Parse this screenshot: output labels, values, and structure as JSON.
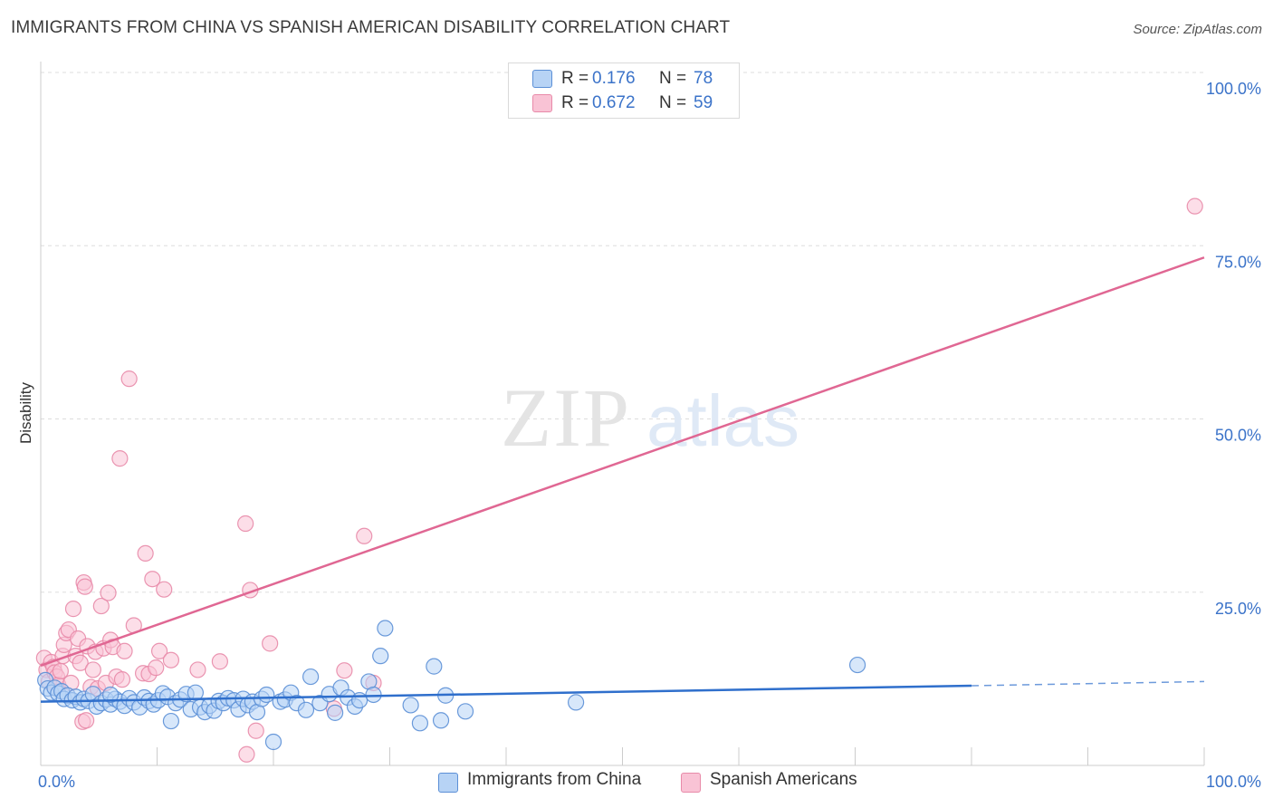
{
  "title": "IMMIGRANTS FROM CHINA VS SPANISH AMERICAN DISABILITY CORRELATION CHART",
  "source": "Source: ZipAtlas.com",
  "watermark": {
    "zip": "ZIP",
    "atlas": "atlas"
  },
  "colors": {
    "blue_fill": "#b7d3f5",
    "blue_stroke": "#5b8fd6",
    "blue_line": "#2f6fcc",
    "pink_fill": "#f9c3d5",
    "pink_stroke": "#e88aa9",
    "pink_line": "#e06793",
    "tick_label": "#3b73c9",
    "grid": "#dddddd"
  },
  "legend": {
    "rows": [
      {
        "r_label": "R =",
        "r_value": "0.176",
        "n_label": "N =",
        "n_value": "78"
      },
      {
        "r_label": "R =",
        "r_value": "0.672",
        "n_label": "N =",
        "n_value": "59"
      }
    ]
  },
  "chart_data": {
    "type": "scatter",
    "title": "IMMIGRANTS FROM CHINA VS SPANISH AMERICAN DISABILITY CORRELATION CHART",
    "xlabel": "",
    "ylabel": "Disability",
    "xlim": [
      0,
      100
    ],
    "ylim": [
      0,
      100
    ],
    "x_tick_labels": [
      "0.0%",
      "100.0%"
    ],
    "y_ticks": [
      25,
      50,
      75,
      100
    ],
    "y_tick_labels": [
      "25.0%",
      "50.0%",
      "75.0%",
      "100.0%"
    ],
    "grid": true,
    "legend_position": "top-center",
    "series": [
      {
        "name": "Immigrants from China",
        "R": 0.176,
        "N": 78,
        "trend": {
          "x0": 0,
          "y0": 9.2,
          "x1": 80,
          "y1": 11.5,
          "dashed_to_x": 100,
          "dashed_to_y": 12.1
        },
        "points": [
          [
            0.4,
            12.3
          ],
          [
            0.6,
            11.1
          ],
          [
            0.9,
            10.5
          ],
          [
            1.2,
            11.2
          ],
          [
            1.5,
            10.4
          ],
          [
            1.8,
            10.7
          ],
          [
            2.0,
            9.6
          ],
          [
            2.3,
            10.1
          ],
          [
            2.7,
            9.4
          ],
          [
            3.0,
            9.9
          ],
          [
            3.4,
            9.1
          ],
          [
            3.7,
            9.6
          ],
          [
            4.1,
            9.3
          ],
          [
            4.5,
            10.3
          ],
          [
            4.8,
            8.5
          ],
          [
            5.2,
            9.0
          ],
          [
            5.6,
            9.5
          ],
          [
            6.0,
            8.8
          ],
          [
            6.4,
            9.6
          ],
          [
            6.8,
            9.2
          ],
          [
            7.2,
            8.6
          ],
          [
            7.6,
            9.7
          ],
          [
            8.0,
            9.1
          ],
          [
            8.5,
            8.4
          ],
          [
            8.9,
            9.8
          ],
          [
            9.3,
            9.3
          ],
          [
            9.7,
            8.8
          ],
          [
            10.1,
            9.4
          ],
          [
            10.5,
            10.4
          ],
          [
            10.9,
            9.9
          ],
          [
            11.2,
            6.4
          ],
          [
            11.6,
            9.0
          ],
          [
            12.0,
            9.5
          ],
          [
            12.5,
            10.3
          ],
          [
            12.9,
            8.1
          ],
          [
            13.3,
            10.5
          ],
          [
            13.7,
            8.4
          ],
          [
            14.1,
            7.7
          ],
          [
            14.5,
            8.6
          ],
          [
            14.9,
            7.9
          ],
          [
            15.3,
            9.3
          ],
          [
            15.7,
            9.0
          ],
          [
            16.1,
            9.7
          ],
          [
            16.6,
            9.4
          ],
          [
            17.0,
            8.1
          ],
          [
            17.4,
            9.6
          ],
          [
            17.8,
            8.7
          ],
          [
            18.2,
            9.2
          ],
          [
            18.6,
            7.7
          ],
          [
            19.0,
            9.6
          ],
          [
            19.4,
            10.2
          ],
          [
            20.0,
            3.4
          ],
          [
            20.6,
            9.2
          ],
          [
            21.0,
            9.5
          ],
          [
            21.5,
            10.5
          ],
          [
            22.0,
            9.0
          ],
          [
            22.8,
            8.0
          ],
          [
            23.2,
            12.8
          ],
          [
            24.0,
            9.0
          ],
          [
            24.8,
            10.3
          ],
          [
            25.3,
            7.6
          ],
          [
            25.8,
            11.2
          ],
          [
            26.4,
            9.8
          ],
          [
            27.0,
            8.5
          ],
          [
            27.4,
            9.4
          ],
          [
            28.2,
            12.1
          ],
          [
            28.6,
            10.2
          ],
          [
            29.2,
            15.8
          ],
          [
            29.6,
            19.8
          ],
          [
            31.8,
            8.7
          ],
          [
            32.6,
            6.1
          ],
          [
            33.8,
            14.3
          ],
          [
            34.4,
            6.5
          ],
          [
            34.8,
            10.1
          ],
          [
            36.5,
            7.8
          ],
          [
            46.0,
            9.1
          ],
          [
            70.2,
            14.5
          ],
          [
            6.0,
            10.2
          ]
        ]
      },
      {
        "name": "Spanish Americans",
        "R": 0.672,
        "N": 59,
        "trend": {
          "x0": 0,
          "y0": 14.4,
          "x1": 100,
          "y1": 73.3
        },
        "points": [
          [
            0.3,
            15.5
          ],
          [
            0.5,
            13.8
          ],
          [
            0.7,
            12.1
          ],
          [
            0.9,
            14.9
          ],
          [
            1.1,
            14.2
          ],
          [
            1.2,
            13.4
          ],
          [
            1.4,
            12.8
          ],
          [
            1.5,
            11.6
          ],
          [
            1.7,
            13.6
          ],
          [
            1.9,
            15.8
          ],
          [
            2.0,
            17.4
          ],
          [
            2.2,
            19.1
          ],
          [
            2.4,
            19.6
          ],
          [
            2.6,
            11.9
          ],
          [
            2.8,
            22.6
          ],
          [
            3.0,
            15.8
          ],
          [
            3.2,
            18.3
          ],
          [
            3.4,
            14.8
          ],
          [
            3.6,
            6.3
          ],
          [
            3.7,
            26.4
          ],
          [
            3.8,
            25.8
          ],
          [
            3.9,
            6.5
          ],
          [
            4.0,
            17.2
          ],
          [
            4.3,
            11.3
          ],
          [
            4.5,
            13.8
          ],
          [
            4.7,
            16.4
          ],
          [
            4.9,
            11.1
          ],
          [
            5.2,
            23.0
          ],
          [
            5.4,
            16.9
          ],
          [
            5.6,
            11.9
          ],
          [
            5.8,
            24.9
          ],
          [
            6.0,
            18.1
          ],
          [
            6.2,
            17.1
          ],
          [
            6.5,
            12.8
          ],
          [
            6.8,
            44.3
          ],
          [
            7.2,
            16.5
          ],
          [
            7.0,
            12.4
          ],
          [
            7.6,
            55.8
          ],
          [
            8.0,
            20.2
          ],
          [
            8.8,
            13.3
          ],
          [
            9.0,
            30.6
          ],
          [
            9.3,
            13.2
          ],
          [
            9.6,
            26.9
          ],
          [
            9.9,
            14.1
          ],
          [
            10.2,
            16.5
          ],
          [
            10.6,
            25.4
          ],
          [
            11.2,
            15.2
          ],
          [
            13.5,
            13.8
          ],
          [
            15.4,
            15.0
          ],
          [
            17.6,
            34.9
          ],
          [
            17.7,
            1.6
          ],
          [
            18.0,
            25.3
          ],
          [
            18.5,
            5.0
          ],
          [
            19.7,
            17.6
          ],
          [
            25.2,
            8.2
          ],
          [
            26.1,
            13.7
          ],
          [
            27.8,
            33.1
          ],
          [
            28.6,
            11.9
          ],
          [
            99.2,
            80.7
          ]
        ]
      }
    ]
  }
}
